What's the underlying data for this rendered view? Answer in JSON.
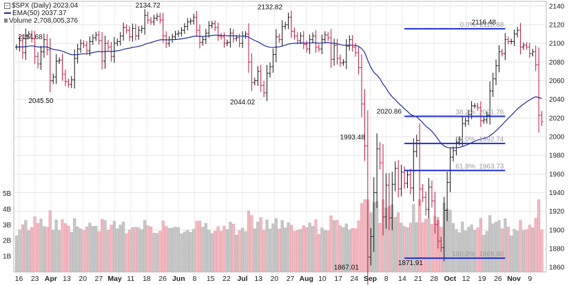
{
  "chart_data": {
    "type": "ohlc",
    "title": "$SPX (Daily) 2023.04",
    "legend": [
      {
        "label": "EMA(50) 2037.37",
        "color": "#1a2a9c"
      },
      {
        "label": "Volume 2,708,005,376",
        "color": "#888888"
      }
    ],
    "y_axis": {
      "ticks": [
        "1860",
        "1880",
        "1900",
        "1920",
        "1940",
        "1960",
        "1980",
        "2000",
        "2020",
        "2040",
        "2060",
        "2080",
        "2100",
        "2120",
        "2140"
      ],
      "range": [
        1855,
        2145
      ],
      "side": "right"
    },
    "volume_axis": {
      "ticks": [
        "1B",
        "2B",
        "3B",
        "4B",
        "5B"
      ],
      "range": [
        0,
        5.5
      ],
      "side": "left"
    },
    "x_axis": {
      "labels": [
        "16",
        "23",
        "Apr",
        "13",
        "20",
        "27",
        "May",
        "11",
        "18",
        "26",
        "Jun",
        "8",
        "15",
        "22",
        "Jul",
        "13",
        "20",
        "27",
        "Aug",
        "10",
        "17",
        "24",
        "Sep",
        "8",
        "14",
        "21",
        "28",
        "Oct",
        "12",
        "19",
        "26",
        "Nov",
        "9"
      ],
      "bold": [
        "Apr",
        "May",
        "Jun",
        "Jul",
        "Aug",
        "Sep",
        "Oct",
        "Nov"
      ]
    },
    "price_annotations": [
      {
        "text": "2114.68",
        "x": 0,
        "y": 2114.68
      },
      {
        "text": "2045.50",
        "x": 8,
        "y": 2045.5
      },
      {
        "text": "2134.72",
        "x": 43,
        "y": 2134.72
      },
      {
        "text": "2044.02",
        "x": 74,
        "y": 2044.02
      },
      {
        "text": "2132.82",
        "x": 83,
        "y": 2132.82
      },
      {
        "text": "1867.01",
        "x": 108,
        "y": 1867.01
      },
      {
        "text": "1993.48",
        "x": 110,
        "y": 1993.48
      },
      {
        "text": "2020.86",
        "x": 122,
        "y": 2020.86
      },
      {
        "text": "1871.91",
        "x": 129,
        "y": 1871.91
      },
      {
        "text": "2116.48",
        "x": 153,
        "y": 2116.48
      }
    ],
    "fibonacci": {
      "x_start": 127,
      "x_end": 160,
      "levels": [
        {
          "label": "0.0%: 2115.68",
          "value": 2115.68
        },
        {
          "label": "38.2%: 2021.76",
          "value": 2021.76
        },
        {
          "label": "50.0%: 1992.74",
          "value": 1992.74
        },
        {
          "label": "61.8%: 1963.73",
          "value": 1963.73
        },
        {
          "label": "100.0%: 1869.80",
          "value": 1869.8
        }
      ]
    },
    "series_close": [
      2096,
      2103,
      2090,
      2108,
      2110,
      2105,
      2086,
      2078,
      2091,
      2104,
      2093,
      2060,
      2064,
      2081,
      2082,
      2067,
      2059,
      2056,
      2061,
      2084,
      2094,
      2100,
      2098,
      2092,
      2102,
      2106,
      2109,
      2103,
      2081,
      2100,
      2096,
      2086,
      2100,
      2102,
      2108,
      2117,
      2114,
      2107,
      2116,
      2108,
      2114,
      2116,
      2130,
      2125,
      2123,
      2127,
      2129,
      2125,
      2108,
      2100,
      2104,
      2107,
      2110,
      2111,
      2114,
      2118,
      2123,
      2124,
      2128,
      2114,
      2101,
      2104,
      2111,
      2119,
      2121,
      2117,
      2108,
      2107,
      2100,
      2101,
      2111,
      2105,
      2106,
      2100,
      2108,
      2110,
      2080,
      2058,
      2060,
      2070,
      2055,
      2047,
      2068,
      2075,
      2088,
      2107,
      2104,
      2118,
      2120,
      2128,
      2113,
      2108,
      2103,
      2108,
      2099,
      2094,
      2104,
      2108,
      2096,
      2094,
      2104,
      2109,
      2106,
      2083,
      2098,
      2084,
      2079,
      2080,
      2097,
      2104,
      2096,
      2090,
      2074,
      2035,
      1990,
      1871,
      1893,
      1940,
      1987,
      1972,
      1914,
      1948,
      1913,
      1949,
      1966,
      1944,
      1962,
      1950,
      1959,
      1945,
      1984,
      1996,
      1944,
      1935,
      1922,
      1946,
      1931,
      1906,
      1888,
      1881,
      1921,
      1951,
      1978,
      1985,
      1994,
      1997,
      2014,
      2017,
      2024,
      2033,
      2033,
      2031,
      2017,
      2018,
      2023,
      2049,
      2062,
      2076,
      2091,
      2089,
      2104,
      2102,
      2102,
      2110,
      2114,
      2096,
      2098,
      2096,
      2089,
      2091,
      2077,
      2023,
      2016
    ]
  }
}
